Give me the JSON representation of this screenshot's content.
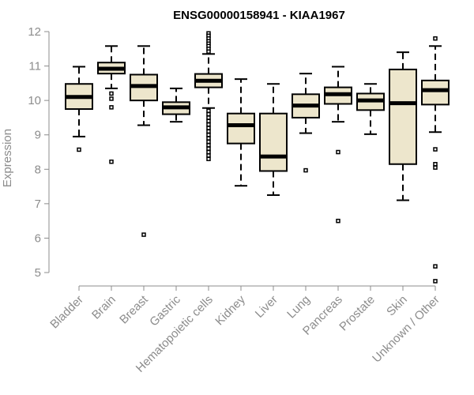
{
  "chart_data": {
    "type": "boxplot",
    "title": "ENSG00000158941 - KIAA1967",
    "xlabel": "",
    "ylabel": "Expression",
    "ylim": [
      4.6,
      12.1
    ],
    "yticks": [
      5,
      6,
      7,
      8,
      9,
      10,
      11,
      12
    ],
    "box_color": "#ede6cc",
    "line_color": "#000000",
    "axis_color": "#8c8c8c",
    "categories": [
      "Bladder",
      "Brain",
      "Breast",
      "Gastric",
      "Hematopoietic cells",
      "Kidney",
      "Liver",
      "Lung",
      "Pancreas",
      "Prostate",
      "Skin",
      "Unknown / Other"
    ],
    "boxes": [
      {
        "category": "Bladder",
        "whisker_low": 8.95,
        "q1": 9.75,
        "median": 10.1,
        "q3": 10.48,
        "whisker_high": 10.98,
        "outliers": [
          8.57
        ]
      },
      {
        "category": "Brain",
        "whisker_low": 10.35,
        "q1": 10.78,
        "median": 10.92,
        "q3": 11.1,
        "whisker_high": 11.58,
        "outliers": [
          10.2,
          10.05,
          9.8,
          8.22
        ]
      },
      {
        "category": "Breast",
        "whisker_low": 9.28,
        "q1": 10.0,
        "median": 10.42,
        "q3": 10.75,
        "whisker_high": 11.58,
        "outliers": [
          6.1
        ]
      },
      {
        "category": "Gastric",
        "whisker_low": 9.38,
        "q1": 9.6,
        "median": 9.8,
        "q3": 9.95,
        "whisker_high": 10.35,
        "outliers": []
      },
      {
        "category": "Hematopoietic cells",
        "whisker_low": 9.78,
        "q1": 10.38,
        "median": 10.57,
        "q3": 10.77,
        "whisker_high": 11.35,
        "outliers": [
          11.95,
          11.88,
          11.8,
          11.72,
          11.65,
          11.58,
          11.5,
          11.42,
          9.7,
          9.6,
          9.5,
          9.4,
          9.3,
          9.2,
          9.1,
          9.0,
          8.9,
          8.8,
          8.7,
          8.6,
          8.5,
          8.4,
          8.3
        ]
      },
      {
        "category": "Kidney",
        "whisker_low": 7.52,
        "q1": 8.75,
        "median": 9.28,
        "q3": 9.62,
        "whisker_high": 10.62,
        "outliers": []
      },
      {
        "category": "Liver",
        "whisker_low": 7.25,
        "q1": 7.95,
        "median": 8.37,
        "q3": 9.62,
        "whisker_high": 10.48,
        "outliers": []
      },
      {
        "category": "Lung",
        "whisker_low": 9.05,
        "q1": 9.5,
        "median": 9.85,
        "q3": 10.18,
        "whisker_high": 10.78,
        "outliers": [
          7.97
        ]
      },
      {
        "category": "Pancreas",
        "whisker_low": 9.38,
        "q1": 9.9,
        "median": 10.18,
        "q3": 10.38,
        "whisker_high": 10.98,
        "outliers": [
          8.5,
          6.5
        ]
      },
      {
        "category": "Prostate",
        "whisker_low": 9.02,
        "q1": 9.72,
        "median": 10.0,
        "q3": 10.2,
        "whisker_high": 10.48,
        "outliers": []
      },
      {
        "category": "Skin",
        "whisker_low": 7.1,
        "q1": 8.15,
        "median": 9.92,
        "q3": 10.9,
        "whisker_high": 11.4,
        "outliers": []
      },
      {
        "category": "Unknown / Other",
        "whisker_low": 9.08,
        "q1": 9.88,
        "median": 10.3,
        "q3": 10.58,
        "whisker_high": 11.58,
        "outliers": [
          11.8,
          8.58,
          8.15,
          8.05,
          5.18,
          4.75
        ]
      }
    ]
  }
}
